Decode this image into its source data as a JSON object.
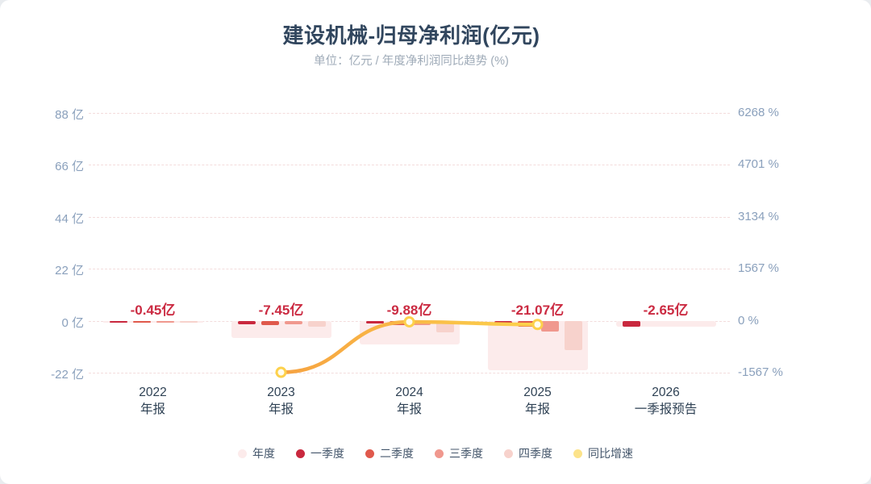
{
  "header": {
    "title": "建设机械-归母净利润(亿元)",
    "subtitle": "单位：亿元 / 年度净利润同比趋势 (%)"
  },
  "chart_data": {
    "type": "bar",
    "title": "建设机械-归母净利润(亿元)",
    "subtitle": "单位：亿元 / 年度净利润同比趋势 (%)",
    "categories": [
      "2022 年报",
      "2023 年报",
      "2024 年报",
      "2025 年报",
      "2026 一季报预告"
    ],
    "x_labels": [
      [
        "2022",
        "年报"
      ],
      [
        "2023",
        "年报"
      ],
      [
        "2024",
        "年报"
      ],
      [
        "2025",
        "年报"
      ],
      [
        "2026",
        "一季报预告"
      ]
    ],
    "value_labels": [
      "-0.45亿",
      "-7.45亿",
      "-9.88亿",
      "-21.07亿",
      "-2.65亿"
    ],
    "annual_values": [
      -0.45,
      -7.45,
      -9.88,
      -21.07,
      -2.65
    ],
    "series": [
      {
        "name": "年度",
        "color": "#fcebeb",
        "values": [
          -0.45,
          -7.45,
          -9.88,
          -21.07,
          -2.65
        ]
      },
      {
        "name": "一季度",
        "color": "#c9283e",
        "values": [
          -0.3,
          -1.6,
          -1.2,
          -1.5,
          -2.65
        ]
      },
      {
        "name": "二季度",
        "color": "#e0594c",
        "values": [
          -0.05,
          -1.8,
          -1.8,
          -2.5,
          null
        ]
      },
      {
        "name": "三季度",
        "color": "#f0988e",
        "values": [
          -0.05,
          -1.4,
          -2.0,
          -4.5,
          null
        ]
      },
      {
        "name": "四季度",
        "color": "#f7d2cc",
        "values": [
          -0.05,
          -2.65,
          -4.88,
          -12.57,
          null
        ]
      }
    ],
    "line_series": {
      "name": "同比增速",
      "color_start": "#f6a241",
      "color_end": "#fcd24c",
      "x_indices": [
        1,
        2,
        3
      ],
      "values_pct": [
        -1556,
        -33,
        -113
      ]
    },
    "left_axis": {
      "ticks": [
        "88 亿",
        "66 亿",
        "44 亿",
        "22 亿",
        "0 亿",
        "-22 亿"
      ],
      "values": [
        88,
        66,
        44,
        22,
        0,
        -22
      ]
    },
    "right_axis": {
      "ticks": [
        "6268 %",
        "4701 %",
        "3134 %",
        "1567 %",
        "0 %",
        "-1567 %"
      ],
      "values": [
        6268,
        4701,
        3134,
        1567,
        0,
        -1567
      ]
    },
    "ylim": [
      -22,
      88
    ],
    "y2lim": [
      -1567,
      6268
    ],
    "grid": "dashed",
    "legend_position": "bottom"
  },
  "legend": {
    "items": [
      {
        "label": "年度",
        "color": "#fcebeb"
      },
      {
        "label": "一季度",
        "color": "#c9283e"
      },
      {
        "label": "二季度",
        "color": "#e0594c"
      },
      {
        "label": "三季度",
        "color": "#f0988e"
      },
      {
        "label": "四季度",
        "color": "#f7d2cc"
      },
      {
        "label": "同比增速",
        "color": "#fce38a"
      }
    ]
  }
}
